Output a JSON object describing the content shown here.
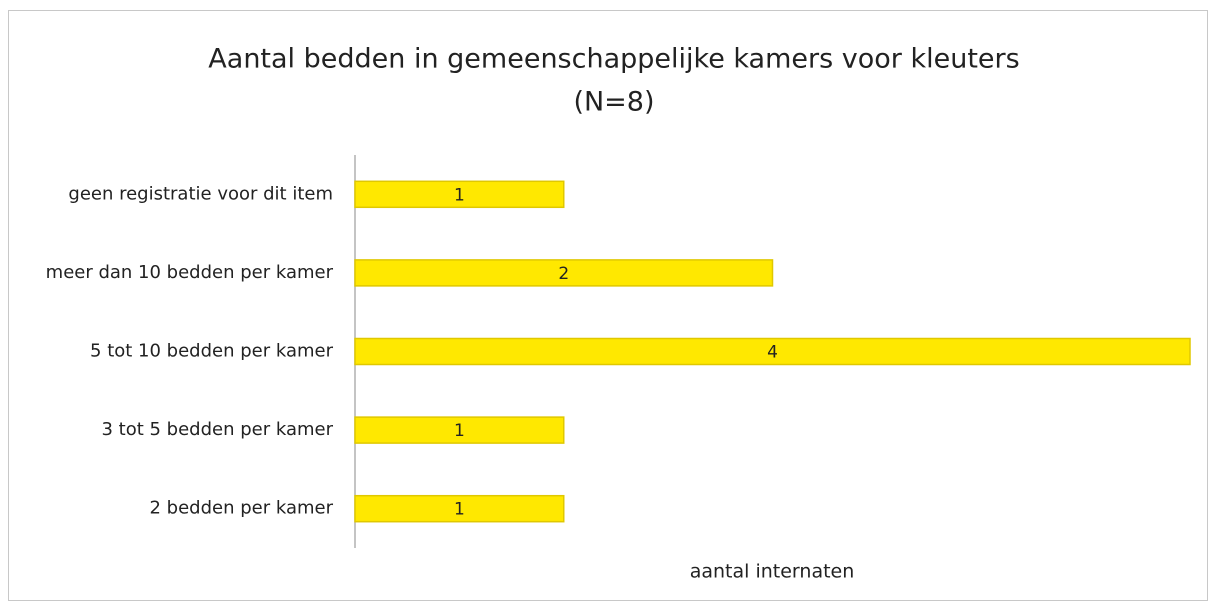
{
  "chart_data": {
    "type": "bar",
    "orientation": "horizontal",
    "title": "Aantal bedden in gemeenschappelijke kamers voor kleuters",
    "subtitle": "(N=8)",
    "x_label": "aantal internaten",
    "categories": [
      "geen registratie voor dit item",
      "meer dan 10 bedden per kamer",
      "5 tot 10 bedden per kamer",
      "3 tot 5 bedden per kamer",
      "2 bedden per kamer"
    ],
    "values": [
      1,
      2,
      4,
      1,
      1
    ],
    "color": "#ffe800",
    "xlim": [
      0,
      4
    ]
  }
}
